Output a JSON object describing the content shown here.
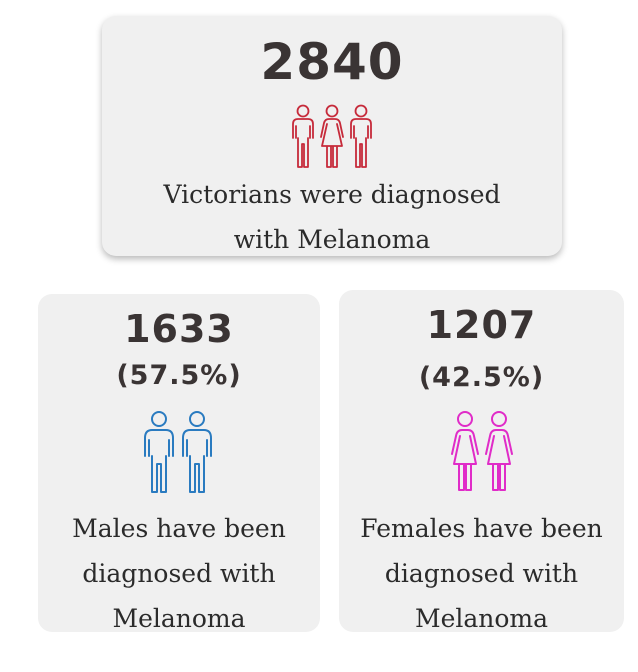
{
  "total": {
    "number": "2840",
    "caption_line1": "Victorians were diagnosed",
    "caption_line2": "with Melanoma",
    "icon": "people-group-icon",
    "icon_color": "#c62a3a"
  },
  "males": {
    "number": "1633",
    "percent": "(57.5%)",
    "caption_line1": "Males have been",
    "caption_line2": "diagnosed with",
    "caption_line3": "Melanoma",
    "icon": "two-men-icon",
    "icon_color": "#2a7bc0"
  },
  "females": {
    "number": "1207",
    "percent": "(42.5%)",
    "caption_line1": "Females have been",
    "caption_line2": "diagnosed with",
    "caption_line3": "Melanoma",
    "icon": "two-women-icon",
    "icon_color": "#e02cc8"
  }
}
